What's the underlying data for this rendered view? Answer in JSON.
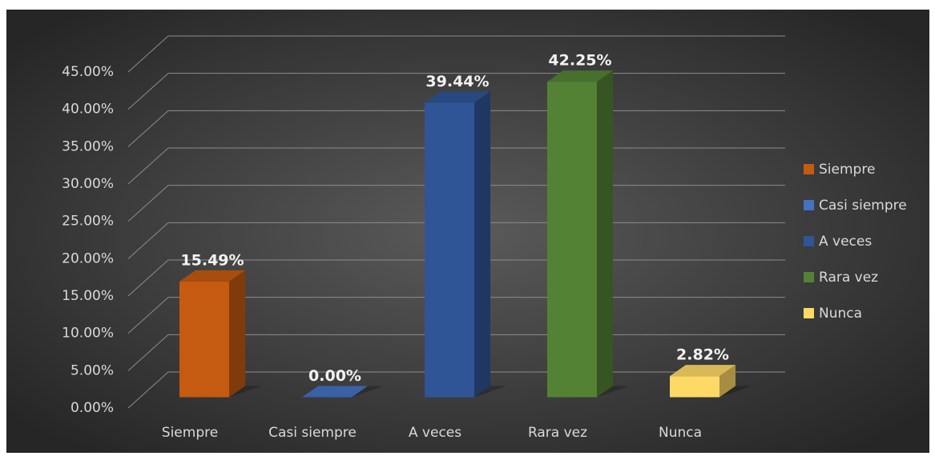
{
  "chart_data": {
    "type": "bar3d",
    "categories": [
      "Siempre",
      "Casi siempre",
      "A veces",
      "Rara vez",
      "Nunca"
    ],
    "values": [
      15.49,
      0,
      39.44,
      42.25,
      2.82
    ],
    "value_labels": [
      "15.49%",
      "0.00%",
      "39.44%",
      "42.25%",
      "2.82%"
    ],
    "colors": [
      "#c55a11",
      "#4472c4",
      "#2f5597",
      "#548235",
      "#ffd966"
    ],
    "ylim": [
      0,
      45
    ],
    "yticks": [
      {
        "value": 0,
        "label": "0.00%"
      },
      {
        "value": 5,
        "label": "5.00%"
      },
      {
        "value": 10,
        "label": "10.00%"
      },
      {
        "value": 15,
        "label": "15.00%"
      },
      {
        "value": 20,
        "label": "20.00%"
      },
      {
        "value": 25,
        "label": "25.00%"
      },
      {
        "value": 30,
        "label": "30.00%"
      },
      {
        "value": 35,
        "label": "35.00%"
      },
      {
        "value": 40,
        "label": "40.00%"
      },
      {
        "value": 45,
        "label": "45.00%"
      }
    ],
    "grid": true,
    "legend": "right"
  }
}
